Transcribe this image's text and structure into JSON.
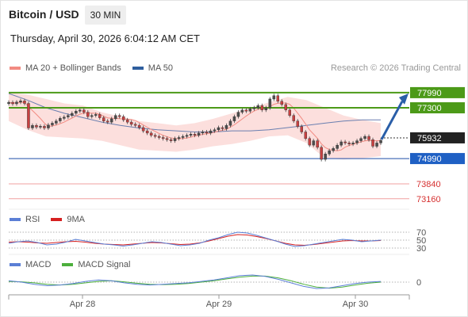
{
  "header": {
    "pair": "Bitcoin / USD",
    "timeframe": "30 MIN"
  },
  "timestamp": "Thursday, April 30, 2026 6:04:12 AM CET",
  "credit": "Research © 2026 Trading Central",
  "legend_main": [
    {
      "label": "MA 20 + Bollinger Bands",
      "color": "#f28b82"
    },
    {
      "label": "MA 50",
      "color": "#2f5e9e"
    }
  ],
  "legend_rsi": [
    {
      "label": "RSI",
      "color": "#5b7fd6"
    },
    {
      "label": "9MA",
      "color": "#d62020"
    }
  ],
  "legend_macd": [
    {
      "label": "MACD",
      "color": "#5b7fd6"
    },
    {
      "label": "MACD Signal",
      "color": "#4caf3c"
    }
  ],
  "chart_data": {
    "type": "candlestick",
    "instrument": "Bitcoin / USD",
    "interval": "30 MIN",
    "y_range": [
      72900,
      78600
    ],
    "x_range": [
      "Apr 27 15:00",
      "Apr 30 09:00"
    ],
    "x_ticks": [
      "Apr 28",
      "Apr 29",
      "Apr 30"
    ],
    "last_price": 75932,
    "pivot": 74990,
    "resistances": [
      77300,
      77990
    ],
    "supports": [
      73840,
      73160
    ],
    "levels": [
      {
        "value": 77990,
        "role": "resistance",
        "color": "#4c9a18"
      },
      {
        "value": 77300,
        "role": "resistance",
        "color": "#4c9a18"
      },
      {
        "value": 75932,
        "role": "last",
        "color": "#333333"
      },
      {
        "value": 74990,
        "role": "pivot",
        "color": "#1f4fa8"
      },
      {
        "value": 73840,
        "role": "support",
        "color": "#e05050"
      },
      {
        "value": 73160,
        "role": "support",
        "color": "#e05050"
      }
    ],
    "price_path": [
      77550,
      77480,
      77560,
      77620,
      77500,
      76380,
      76500,
      76420,
      76460,
      76380,
      76520,
      76600,
      76700,
      76820,
      76880,
      76950,
      77050,
      77150,
      77200,
      77100,
      76900,
      76950,
      77000,
      76850,
      76700,
      76650,
      76800,
      76950,
      76900,
      76750,
      76650,
      76550,
      76500,
      76400,
      76250,
      76150,
      76050,
      76000,
      75950,
      75900,
      75850,
      75800,
      75900,
      75950,
      76000,
      76050,
      76100,
      76050,
      76150,
      76200,
      76150,
      76250,
      76300,
      76400,
      76350,
      76500,
      76700,
      76900,
      77100,
      77200,
      77150,
      77250,
      77300,
      77400,
      77200,
      77300,
      77700,
      77850,
      77600,
      77450,
      77200,
      76950,
      76700,
      76450,
      76200,
      75900,
      75600,
      75800,
      75500,
      74950,
      75200,
      75350,
      75450,
      75600,
      75750,
      75700,
      75650,
      75700,
      75800,
      75900,
      76000,
      75850,
      75550,
      75700,
      75820
    ],
    "ma50_path": [
      77950,
      77650,
      77300,
      77050,
      76850,
      76650,
      76500,
      76380,
      76300,
      76250,
      76200,
      76200,
      76250,
      76250,
      76300,
      76400,
      76500,
      76600,
      76700,
      76750,
      76750
    ],
    "bb_upper_path": [
      78000,
      77900,
      77700,
      77500,
      77400,
      77100,
      76900,
      76700,
      76600,
      76500,
      76600,
      76800,
      77050,
      77300,
      77550,
      77800,
      77650,
      77300,
      76950,
      76750,
      76600
    ],
    "bb_lower_path": [
      76700,
      76300,
      76000,
      75950,
      75900,
      75800,
      75600,
      75400,
      75350,
      75300,
      75400,
      75550,
      75650,
      75800,
      76000,
      76050,
      75700,
      75000,
      74950,
      75000,
      75100
    ],
    "projection": {
      "from": 75932,
      "to": 77990,
      "direction": "up"
    },
    "rsi": {
      "levels": [
        70,
        50,
        30
      ],
      "rsi_path": [
        42,
        46,
        48,
        44,
        38,
        40,
        45,
        52,
        48,
        44,
        40,
        38,
        35,
        38,
        42,
        46,
        44,
        40,
        36,
        38,
        42,
        50,
        56,
        64,
        70,
        68,
        62,
        55,
        48,
        40,
        34,
        36,
        40,
        44,
        48,
        52,
        50,
        46,
        48,
        50
      ],
      "ma_path": [
        45,
        46,
        45,
        43,
        42,
        44,
        46,
        47,
        45,
        42,
        40,
        39,
        38,
        40,
        42,
        44,
        43,
        41,
        39,
        40,
        43,
        48,
        54,
        60,
        64,
        63,
        59,
        54,
        48,
        42,
        38,
        37,
        39,
        42,
        45,
        48,
        49,
        48,
        48,
        49
      ]
    },
    "macd": {
      "zero_label": "0",
      "macd_path": [
        0.2,
        0.0,
        -0.3,
        -0.5,
        -0.4,
        -0.2,
        0.1,
        0.3,
        0.2,
        -0.1,
        -0.3,
        -0.4,
        -0.3,
        -0.2,
        -0.1,
        0.1,
        0.3,
        0.6,
        0.9,
        1.0,
        0.8,
        0.4,
        -0.1,
        -0.6,
        -0.9,
        -0.8,
        -0.5,
        -0.2,
        0.0,
        0.1
      ],
      "signal_path": [
        0.1,
        0.05,
        -0.1,
        -0.3,
        -0.4,
        -0.3,
        -0.1,
        0.1,
        0.2,
        0.05,
        -0.15,
        -0.3,
        -0.35,
        -0.3,
        -0.2,
        0.0,
        0.2,
        0.45,
        0.7,
        0.85,
        0.85,
        0.6,
        0.2,
        -0.3,
        -0.7,
        -0.85,
        -0.7,
        -0.4,
        -0.15,
        0.0
      ]
    }
  }
}
